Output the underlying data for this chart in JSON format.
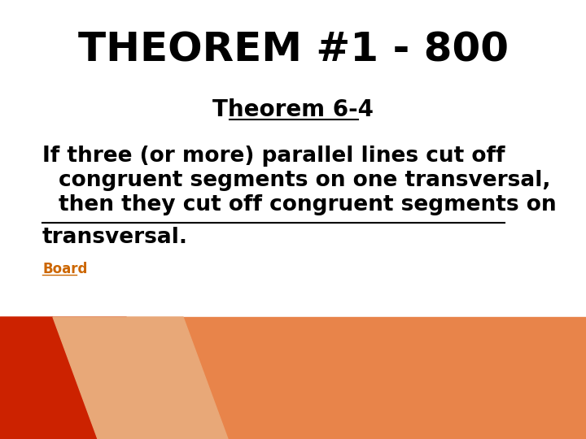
{
  "title": "THEOREM #1 - 800",
  "subtitle": "Theorem 6-4",
  "body_line1": "If three (or more) parallel lines cut off",
  "body_line2": "congruent segments on one transversal,",
  "body_line3": "then they cut off congruent segments on",
  "body_line4": "transversal.",
  "board_label": "Board",
  "bg_color": "#ffffff",
  "title_color": "#000000",
  "subtitle_color": "#000000",
  "body_color": "#000000",
  "board_color": "#cc6600",
  "orange_bg": "#e8844a",
  "red_shape": "#cc2200",
  "light_orange_shape": "#e8a878",
  "title_fontsize": 36,
  "subtitle_fontsize": 20,
  "body_fontsize": 19,
  "board_fontsize": 12
}
